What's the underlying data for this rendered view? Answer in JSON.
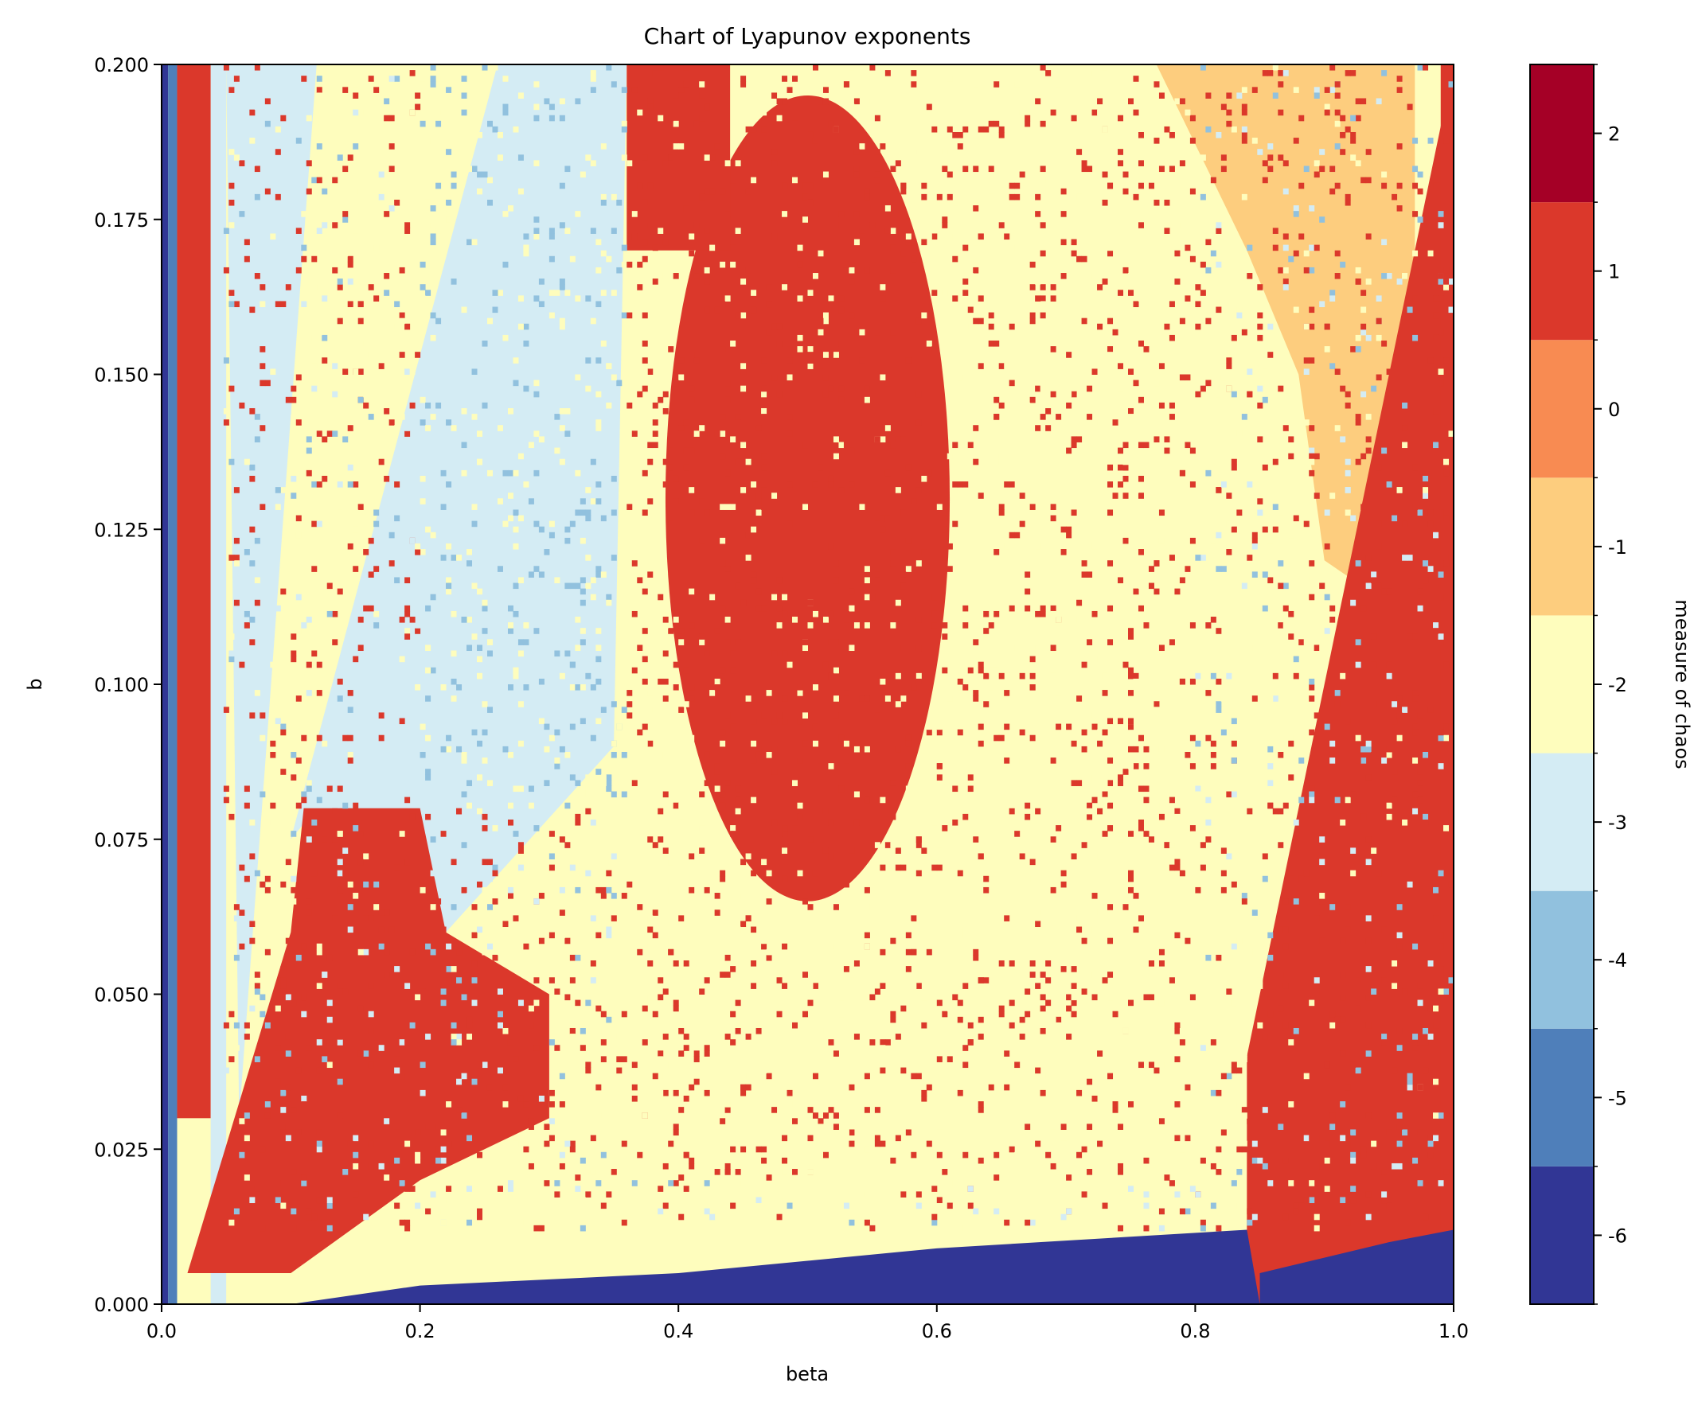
{
  "chart_data": {
    "type": "heatmap",
    "title": "Chart of Lyapunov exponents",
    "xlabel": "beta",
    "ylabel": "b",
    "xlim": [
      0.0,
      1.0
    ],
    "ylim": [
      0.0,
      0.2
    ],
    "x_ticks": [
      "0.0",
      "0.2",
      "0.4",
      "0.6",
      "0.8",
      "1.0"
    ],
    "y_ticks": [
      "0.000",
      "0.025",
      "0.050",
      "0.075",
      "0.100",
      "0.125",
      "0.150",
      "0.175",
      "0.200"
    ],
    "colorbar": {
      "label": "measure of chaos",
      "range": [
        -6.5,
        2.5
      ],
      "ticks": [
        "-6",
        "-5",
        "-4",
        "-3",
        "-2",
        "-1",
        "0",
        "1",
        "2"
      ],
      "bins": [
        {
          "value": -6,
          "color": "#313695"
        },
        {
          "value": -5,
          "color": "#4f7fba"
        },
        {
          "value": -4,
          "color": "#91c1de"
        },
        {
          "value": -3,
          "color": "#d4ecf4"
        },
        {
          "value": -2,
          "color": "#fefdbd"
        },
        {
          "value": -1,
          "color": "#fdcd7e"
        },
        {
          "value": 0,
          "color": "#f88b52"
        },
        {
          "value": 1,
          "color": "#db382b"
        },
        {
          "value": 2,
          "color": "#a50026"
        }
      ]
    },
    "regions": [
      {
        "shape": "rect",
        "beta": [
          0.0,
          0.005
        ],
        "b": [
          0.0,
          0.2
        ],
        "value": -6
      },
      {
        "shape": "rect",
        "beta": [
          0.005,
          0.012
        ],
        "b": [
          0.0,
          0.2
        ],
        "value": -5
      },
      {
        "shape": "rect",
        "beta": [
          0.012,
          0.038
        ],
        "b": [
          0.03,
          0.2
        ],
        "value": 1
      },
      {
        "shape": "rect",
        "beta": [
          0.038,
          0.05
        ],
        "b": [
          0.0,
          0.2
        ],
        "value": -3
      },
      {
        "shape": "poly",
        "points": [
          [
            0.05,
            0.2
          ],
          [
            0.12,
            0.2
          ],
          [
            0.06,
            0.03
          ]
        ],
        "value": -3
      },
      {
        "shape": "poly",
        "points": [
          [
            0.1,
            0.075
          ],
          [
            0.26,
            0.2
          ],
          [
            0.36,
            0.2
          ],
          [
            0.35,
            0.09
          ],
          [
            0.22,
            0.06
          ],
          [
            0.12,
            0.08
          ]
        ],
        "value": -3
      },
      {
        "shape": "poly",
        "points": [
          [
            0.02,
            0.005
          ],
          [
            0.1,
            0.06
          ],
          [
            0.11,
            0.08
          ],
          [
            0.2,
            0.08
          ],
          [
            0.22,
            0.06
          ],
          [
            0.3,
            0.05
          ],
          [
            0.3,
            0.03
          ],
          [
            0.2,
            0.02
          ],
          [
            0.1,
            0.005
          ]
        ],
        "value": 1
      },
      {
        "shape": "ellipse",
        "center": [
          0.5,
          0.13
        ],
        "radii": [
          0.11,
          0.065
        ],
        "value": 1
      },
      {
        "shape": "rect",
        "beta": [
          0.36,
          0.44
        ],
        "b": [
          0.17,
          0.2
        ],
        "value": 1
      },
      {
        "shape": "poly",
        "points": [
          [
            0.77,
            0.2
          ],
          [
            0.97,
            0.2
          ],
          [
            0.97,
            0.11
          ],
          [
            0.9,
            0.12
          ],
          [
            0.88,
            0.15
          ],
          [
            0.84,
            0.17
          ]
        ],
        "value": -1
      },
      {
        "shape": "poly",
        "points": [
          [
            0.84,
            0.0
          ],
          [
            0.84,
            0.04
          ],
          [
            0.88,
            0.08
          ],
          [
            0.95,
            0.15
          ],
          [
            1.0,
            0.2
          ],
          [
            1.0,
            0.0
          ]
        ],
        "value": 1
      },
      {
        "shape": "rect",
        "beta": [
          0.99,
          1.0
        ],
        "b": [
          0.0,
          0.2
        ],
        "value": 1
      },
      {
        "shape": "poly",
        "points": [
          [
            0.0,
            0.0
          ],
          [
            0.1,
            0.0
          ],
          [
            0.2,
            0.003
          ],
          [
            0.4,
            0.005
          ],
          [
            0.6,
            0.009
          ],
          [
            0.84,
            0.012
          ],
          [
            0.85,
            0.0
          ]
        ],
        "value": -6
      },
      {
        "shape": "poly",
        "points": [
          [
            0.85,
            0.0
          ],
          [
            0.85,
            0.005
          ],
          [
            0.95,
            0.01
          ],
          [
            1.0,
            0.012
          ],
          [
            1.0,
            0.0
          ]
        ],
        "value": -6
      }
    ],
    "speckle": {
      "description": "grid cells scattered across mid-region",
      "grid": [
        250,
        220
      ],
      "seed": 7
    }
  }
}
